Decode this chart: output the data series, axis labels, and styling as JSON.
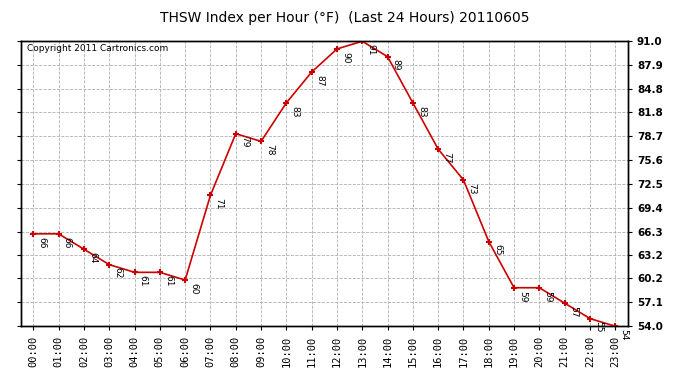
{
  "title": "THSW Index per Hour (°F)  (Last 24 Hours) 20110605",
  "copyright": "Copyright 2011 Cartronics.com",
  "hours": [
    "00:00",
    "01:00",
    "02:00",
    "03:00",
    "04:00",
    "05:00",
    "06:00",
    "07:00",
    "08:00",
    "09:00",
    "10:00",
    "11:00",
    "12:00",
    "13:00",
    "14:00",
    "15:00",
    "16:00",
    "17:00",
    "18:00",
    "19:00",
    "20:00",
    "21:00",
    "22:00",
    "23:00"
  ],
  "values": [
    66,
    66,
    64,
    62,
    61,
    61,
    60,
    71,
    79,
    78,
    83,
    87,
    90,
    91,
    89,
    83,
    77,
    73,
    65,
    59,
    59,
    57,
    55,
    54
  ],
  "ylim_min": 54.0,
  "ylim_max": 91.0,
  "yticks": [
    54.0,
    57.1,
    60.2,
    63.2,
    66.3,
    69.4,
    72.5,
    75.6,
    78.7,
    81.8,
    84.8,
    87.9,
    91.0
  ],
  "line_color": "#cc0000",
  "marker_color": "#cc0000",
  "bg_color": "#ffffff",
  "plot_bg_color": "#ffffff",
  "grid_color": "#b0b0b0",
  "title_fontsize": 10,
  "copyright_fontsize": 6.5,
  "tick_label_fontsize": 7.5,
  "data_label_fontsize": 6.5
}
